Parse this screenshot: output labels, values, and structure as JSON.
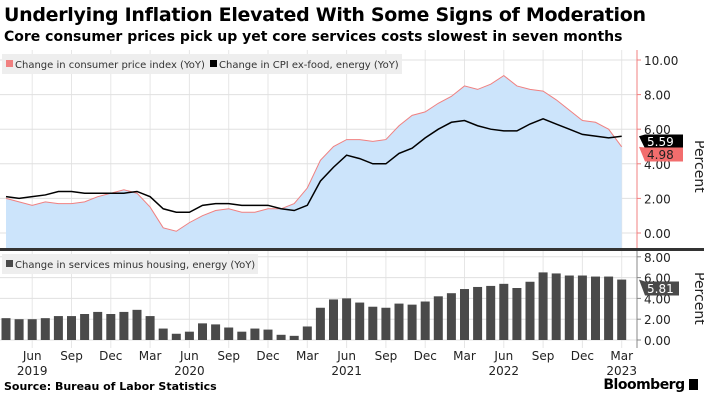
{
  "title": "Underlying Inflation Elevated With Some Signs of Moderation",
  "subtitle": "Core consumer prices pick up yet core services costs slowest in seven months",
  "source": "Source: Bureau of Labor Statistics",
  "brand": "Bloomberg",
  "chart_data": [
    {
      "type": "area",
      "ylabel": "Percent",
      "ylim": [
        -0.8,
        10.4
      ],
      "yticks": [
        "0.00",
        "2.00",
        "4.00",
        "6.00",
        "8.00",
        "10.00"
      ],
      "grid": true,
      "legend_placement": "top-left",
      "x_start": "2019-04",
      "x_end": "2023-03",
      "series": [
        {
          "name": "Change in consumer price index (YoY)",
          "color": "#f08080",
          "fill": "#cce4fb",
          "last_label": "4.98",
          "values": [
            2.0,
            1.8,
            1.6,
            1.8,
            1.7,
            1.7,
            1.8,
            2.1,
            2.3,
            2.5,
            2.3,
            1.5,
            0.3,
            0.1,
            0.6,
            1.0,
            1.3,
            1.4,
            1.2,
            1.2,
            1.4,
            1.4,
            1.7,
            2.6,
            4.2,
            5.0,
            5.4,
            5.4,
            5.3,
            5.4,
            6.2,
            6.8,
            7.0,
            7.5,
            7.9,
            8.5,
            8.3,
            8.6,
            9.1,
            8.5,
            8.3,
            8.2,
            7.7,
            7.1,
            6.5,
            6.4,
            6.0,
            4.98
          ]
        },
        {
          "name": "Change in CPI ex-food, energy (YoY)",
          "color": "#000000",
          "last_label": "5.59",
          "values": [
            2.1,
            2.0,
            2.1,
            2.2,
            2.4,
            2.4,
            2.3,
            2.3,
            2.3,
            2.3,
            2.4,
            2.1,
            1.4,
            1.2,
            1.2,
            1.6,
            1.7,
            1.7,
            1.6,
            1.6,
            1.6,
            1.4,
            1.3,
            1.6,
            3.0,
            3.8,
            4.5,
            4.3,
            4.0,
            4.0,
            4.6,
            4.9,
            5.5,
            6.0,
            6.4,
            6.5,
            6.2,
            6.0,
            5.9,
            5.9,
            6.3,
            6.6,
            6.3,
            6.0,
            5.7,
            5.6,
            5.5,
            5.59
          ]
        }
      ]
    },
    {
      "type": "bar",
      "ylabel": "Percent",
      "ylim": [
        -0.8,
        8.4
      ],
      "yticks": [
        "0.00",
        "2.00",
        "4.00",
        "6.00",
        "8.00"
      ],
      "grid": true,
      "legend_placement": "top-left",
      "series": [
        {
          "name": "Change in services minus housing, energy (YoY)",
          "color": "#4a4a4a",
          "last_label": "5.81",
          "values": [
            2.1,
            2.0,
            2.0,
            2.1,
            2.3,
            2.3,
            2.5,
            2.7,
            2.5,
            2.7,
            2.9,
            2.3,
            1.1,
            0.6,
            0.8,
            1.6,
            1.5,
            1.2,
            0.8,
            1.1,
            1.0,
            0.5,
            0.4,
            1.3,
            3.1,
            3.9,
            4.0,
            3.6,
            3.2,
            3.1,
            3.5,
            3.4,
            3.7,
            4.2,
            4.5,
            4.9,
            5.1,
            5.2,
            5.4,
            5.0,
            5.6,
            6.5,
            6.4,
            6.2,
            6.2,
            6.1,
            6.1,
            5.81
          ]
        }
      ],
      "xticks": [
        {
          "label": "Jun",
          "year": "2019",
          "index": 2
        },
        {
          "label": "Sep",
          "index": 5
        },
        {
          "label": "Dec",
          "index": 8
        },
        {
          "label": "Mar",
          "index": 11
        },
        {
          "label": "Jun",
          "year": "2020",
          "index": 14
        },
        {
          "label": "Sep",
          "index": 17
        },
        {
          "label": "Dec",
          "index": 20
        },
        {
          "label": "Mar",
          "index": 23
        },
        {
          "label": "Jun",
          "year": "2021",
          "index": 26
        },
        {
          "label": "Sep",
          "index": 29
        },
        {
          "label": "Dec",
          "index": 32
        },
        {
          "label": "Mar",
          "index": 35
        },
        {
          "label": "Jun",
          "year": "2022",
          "index": 38
        },
        {
          "label": "Sep",
          "index": 41
        },
        {
          "label": "Dec",
          "index": 44
        },
        {
          "label": "Mar",
          "year": "2023",
          "index": 47
        }
      ]
    }
  ]
}
